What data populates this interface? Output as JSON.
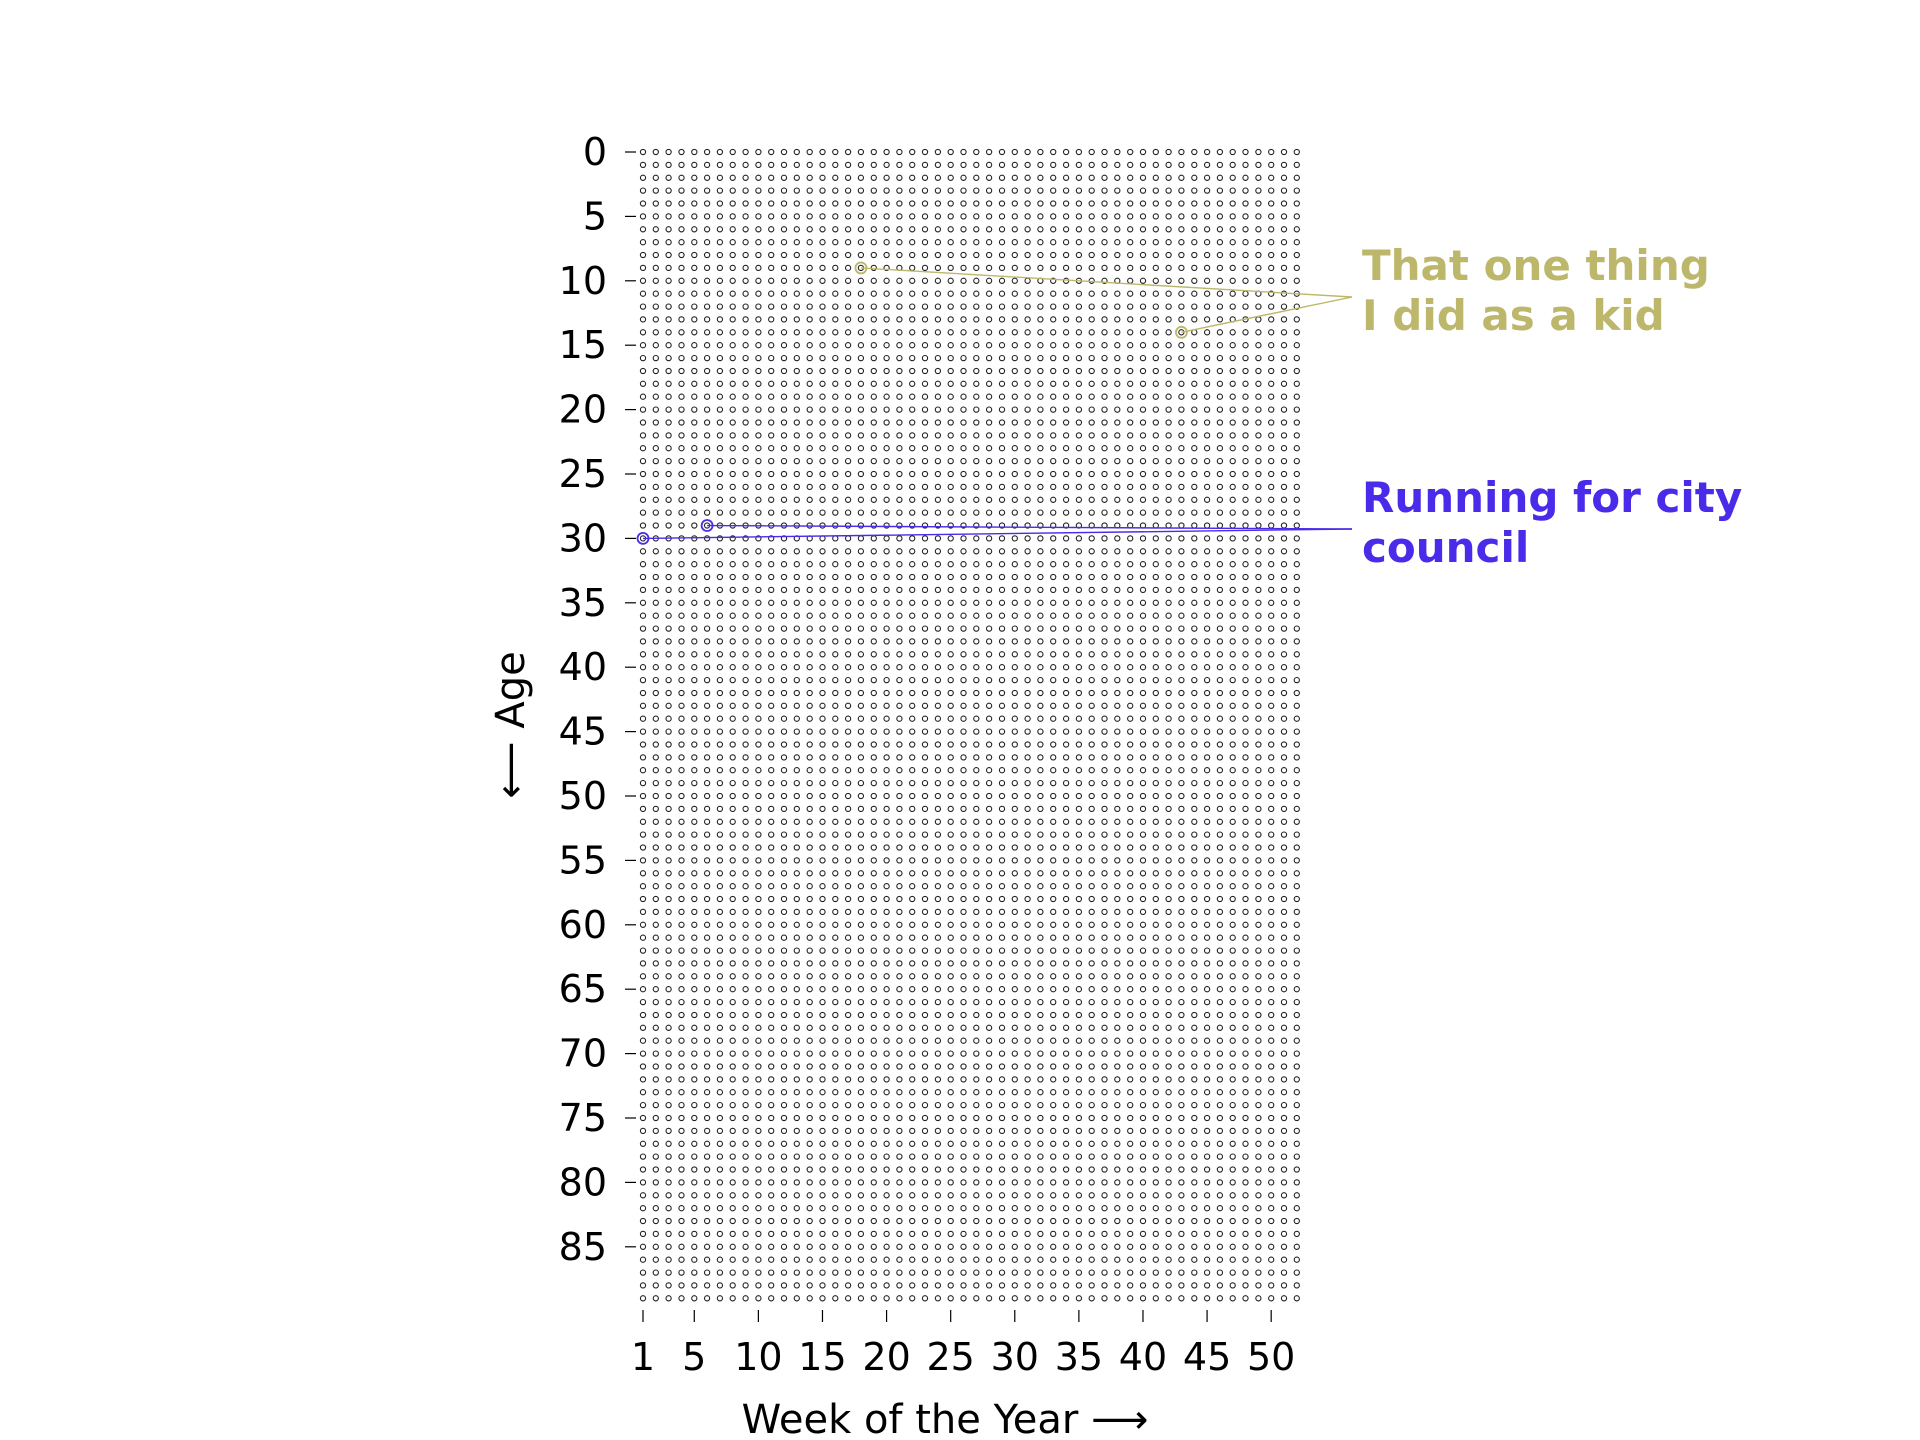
{
  "chart_data": {
    "type": "scatter",
    "xlabel": "Week of the Year ⟶",
    "ylabel": "⟵ Age",
    "x_ticks": [
      "1",
      "5",
      "10",
      "15",
      "20",
      "25",
      "30",
      "35",
      "40",
      "45",
      "50"
    ],
    "y_ticks": [
      "0",
      "5",
      "10",
      "15",
      "20",
      "25",
      "30",
      "35",
      "40",
      "45",
      "50",
      "55",
      "60",
      "65",
      "70",
      "75",
      "80",
      "85"
    ],
    "xlim": [
      1,
      52
    ],
    "ylim": [
      0,
      89
    ],
    "y_inverted": true,
    "grid": "dot-per-week",
    "annotations": [
      {
        "label_lines": [
          "That one thing",
          "I did as a kid"
        ],
        "color": "#bdb76b",
        "points": [
          {
            "week": 18,
            "age": 9
          },
          {
            "week": 43,
            "age": 14
          }
        ]
      },
      {
        "label_lines": [
          "Running for city",
          "council"
        ],
        "color": "#4b2bea",
        "points": [
          {
            "week": 1,
            "age": 30
          },
          {
            "week": 6,
            "age": 29
          }
        ]
      }
    ]
  }
}
